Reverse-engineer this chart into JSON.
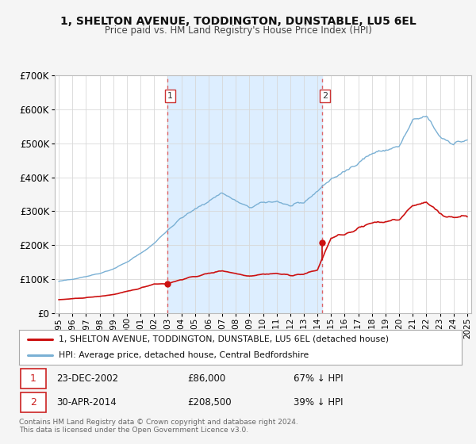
{
  "title": "1, SHELTON AVENUE, TODDINGTON, DUNSTABLE, LU5 6EL",
  "subtitle": "Price paid vs. HM Land Registry's House Price Index (HPI)",
  "legend_line1": "1, SHELTON AVENUE, TODDINGTON, DUNSTABLE, LU5 6EL (detached house)",
  "legend_line2": "HPI: Average price, detached house, Central Bedfordshire",
  "sale1_date": "23-DEC-2002",
  "sale1_price": 86000,
  "sale1_hpi": "67% ↓ HPI",
  "sale2_date": "30-APR-2014",
  "sale2_price": 208500,
  "sale2_hpi": "39% ↓ HPI",
  "footer": "Contains HM Land Registry data © Crown copyright and database right 2024.\nThis data is licensed under the Open Government Licence v3.0.",
  "hpi_color": "#7ab0d4",
  "price_color": "#cc1111",
  "dashed_color": "#dd5555",
  "shade_color": "#ddeeff",
  "bg_color": "#f5f5f5",
  "plot_bg": "#ffffff",
  "grid_color": "#d8d8d8",
  "ylim": [
    0,
    700000
  ],
  "yticks": [
    0,
    100000,
    200000,
    300000,
    400000,
    500000,
    600000,
    700000
  ],
  "sale1_x": 2002.97,
  "sale2_x": 2014.33,
  "xlim_left": 1994.7,
  "xlim_right": 2025.3,
  "xtick_years": [
    1995,
    1996,
    1997,
    1998,
    1999,
    2000,
    2001,
    2002,
    2003,
    2004,
    2005,
    2006,
    2007,
    2008,
    2009,
    2010,
    2011,
    2012,
    2013,
    2014,
    2015,
    2016,
    2017,
    2018,
    2019,
    2020,
    2021,
    2022,
    2023,
    2024,
    2025
  ]
}
